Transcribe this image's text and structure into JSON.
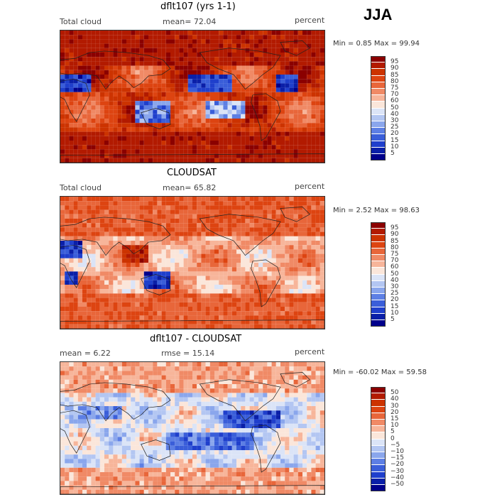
{
  "season": "JJA",
  "panels": [
    {
      "title": "dflt107 (yrs 1-1)",
      "left_label": "Total cloud",
      "mid_label": "mean=  72.04",
      "right_label": "percent",
      "minmax": "Min =   0.85 Max =  99.94",
      "colorbar_labels": [
        "95",
        "90",
        "85",
        "80",
        "75",
        "70",
        "60",
        "50",
        "40",
        "30",
        "25",
        "20",
        "15",
        "10",
        "5"
      ],
      "colorbar_colors": [
        "#8b0000",
        "#b21a00",
        "#cc3300",
        "#dd4411",
        "#e8663a",
        "#f08a66",
        "#f7b59a",
        "#fbe6da",
        "#dbe4f7",
        "#b3c6f2",
        "#8aa6ec",
        "#5d7fe4",
        "#3a5ed9",
        "#1f3fcc",
        "#0a1fa8",
        "#00008b"
      ],
      "palette": "warm"
    },
    {
      "title": "CLOUDSAT",
      "left_label": "Total cloud",
      "mid_label": "mean=  65.82",
      "right_label": "percent",
      "minmax": "Min =   2.52 Max =  98.63",
      "colorbar_labels": [
        "95",
        "90",
        "85",
        "80",
        "75",
        "70",
        "60",
        "50",
        "40",
        "30",
        "25",
        "20",
        "15",
        "10",
        "5"
      ],
      "colorbar_colors": [
        "#8b0000",
        "#b21a00",
        "#cc3300",
        "#dd4411",
        "#e8663a",
        "#f08a66",
        "#f7b59a",
        "#fbe6da",
        "#dbe4f7",
        "#b3c6f2",
        "#8aa6ec",
        "#5d7fe4",
        "#3a5ed9",
        "#1f3fcc",
        "#0a1fa8",
        "#00008b"
      ],
      "palette": "mid"
    },
    {
      "title": "dflt107 - CLOUDSAT",
      "left_label": "mean =    6.22",
      "mid_label": "rmse =  15.14",
      "right_label": "percent",
      "minmax": "Min = -60.02 Max =  59.58",
      "colorbar_labels": [
        "50",
        "40",
        "30",
        "20",
        "15",
        "10",
        "5",
        "0",
        "−5",
        "−10",
        "−15",
        "−20",
        "−30",
        "−40",
        "−50"
      ],
      "colorbar_colors": [
        "#8b0000",
        "#b21a00",
        "#cc3300",
        "#dd4411",
        "#e8663a",
        "#f08a66",
        "#f7b59a",
        "#fbe6da",
        "#dbe4f7",
        "#b3c6f2",
        "#8aa6ec",
        "#5d7fe4",
        "#3a5ed9",
        "#1f3fcc",
        "#0a1fa8",
        "#00008b"
      ],
      "palette": "diff"
    }
  ]
}
